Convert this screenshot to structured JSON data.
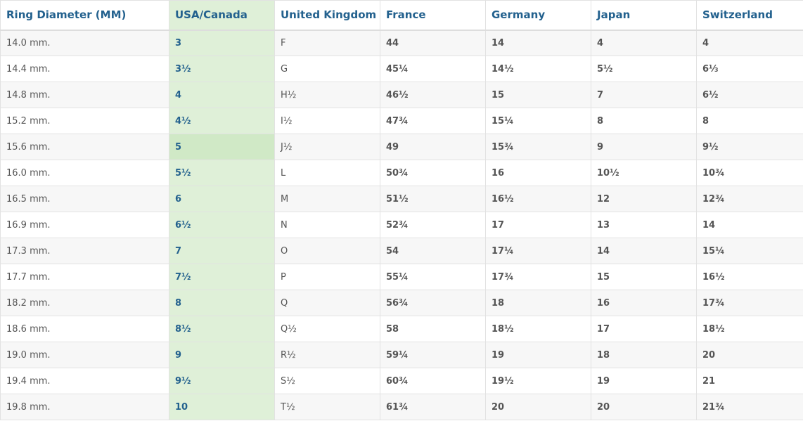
{
  "table": {
    "headers": [
      "Ring Diameter (MM)",
      "USA/Canada",
      "United Kingdom",
      "France",
      "Germany",
      "Japan",
      "Switzerland"
    ],
    "rows": [
      [
        "14.0 mm.",
        "3",
        "F",
        "44",
        "14",
        "4",
        "4"
      ],
      [
        "14.4 mm.",
        "3½",
        "G",
        "45¼",
        "14½",
        "5½",
        "6⅓"
      ],
      [
        "14.8 mm.",
        "4",
        "H½",
        "46½",
        "15",
        "7",
        "6½"
      ],
      [
        "15.2 mm.",
        "4½",
        "I½",
        "47¾",
        "15¼",
        "8",
        "8"
      ],
      [
        "15.6 mm.",
        "5",
        "J½",
        "49",
        "15¾",
        "9",
        "9½"
      ],
      [
        "16.0 mm.",
        "5½",
        "L",
        "50¾",
        "16",
        "10½",
        "10¾"
      ],
      [
        "16.5 mm.",
        "6",
        "M",
        "51½",
        "16½",
        "12",
        "12¾"
      ],
      [
        "16.9 mm.",
        "6½",
        "N",
        "52¾",
        "17",
        "13",
        "14"
      ],
      [
        "17.3 mm.",
        "7",
        "O",
        "54",
        "17¼",
        "14",
        "15¼"
      ],
      [
        "17.7 mm.",
        "7½",
        "P",
        "55¼",
        "17¾",
        "15",
        "16½"
      ],
      [
        "18.2 mm.",
        "8",
        "Q",
        "56¾",
        "18",
        "16",
        "17¾"
      ],
      [
        "18.6 mm.",
        "8½",
        "Q½",
        "58",
        "18½",
        "17",
        "18½"
      ],
      [
        "19.0 mm.",
        "9",
        "R½",
        "59¼",
        "19",
        "18",
        "20"
      ],
      [
        "19.4 mm.",
        "9½",
        "S½",
        "60¾",
        "19½",
        "19",
        "21"
      ],
      [
        "19.8 mm.",
        "10",
        "T½",
        "61¾",
        "20",
        "20",
        "21¾"
      ]
    ]
  }
}
